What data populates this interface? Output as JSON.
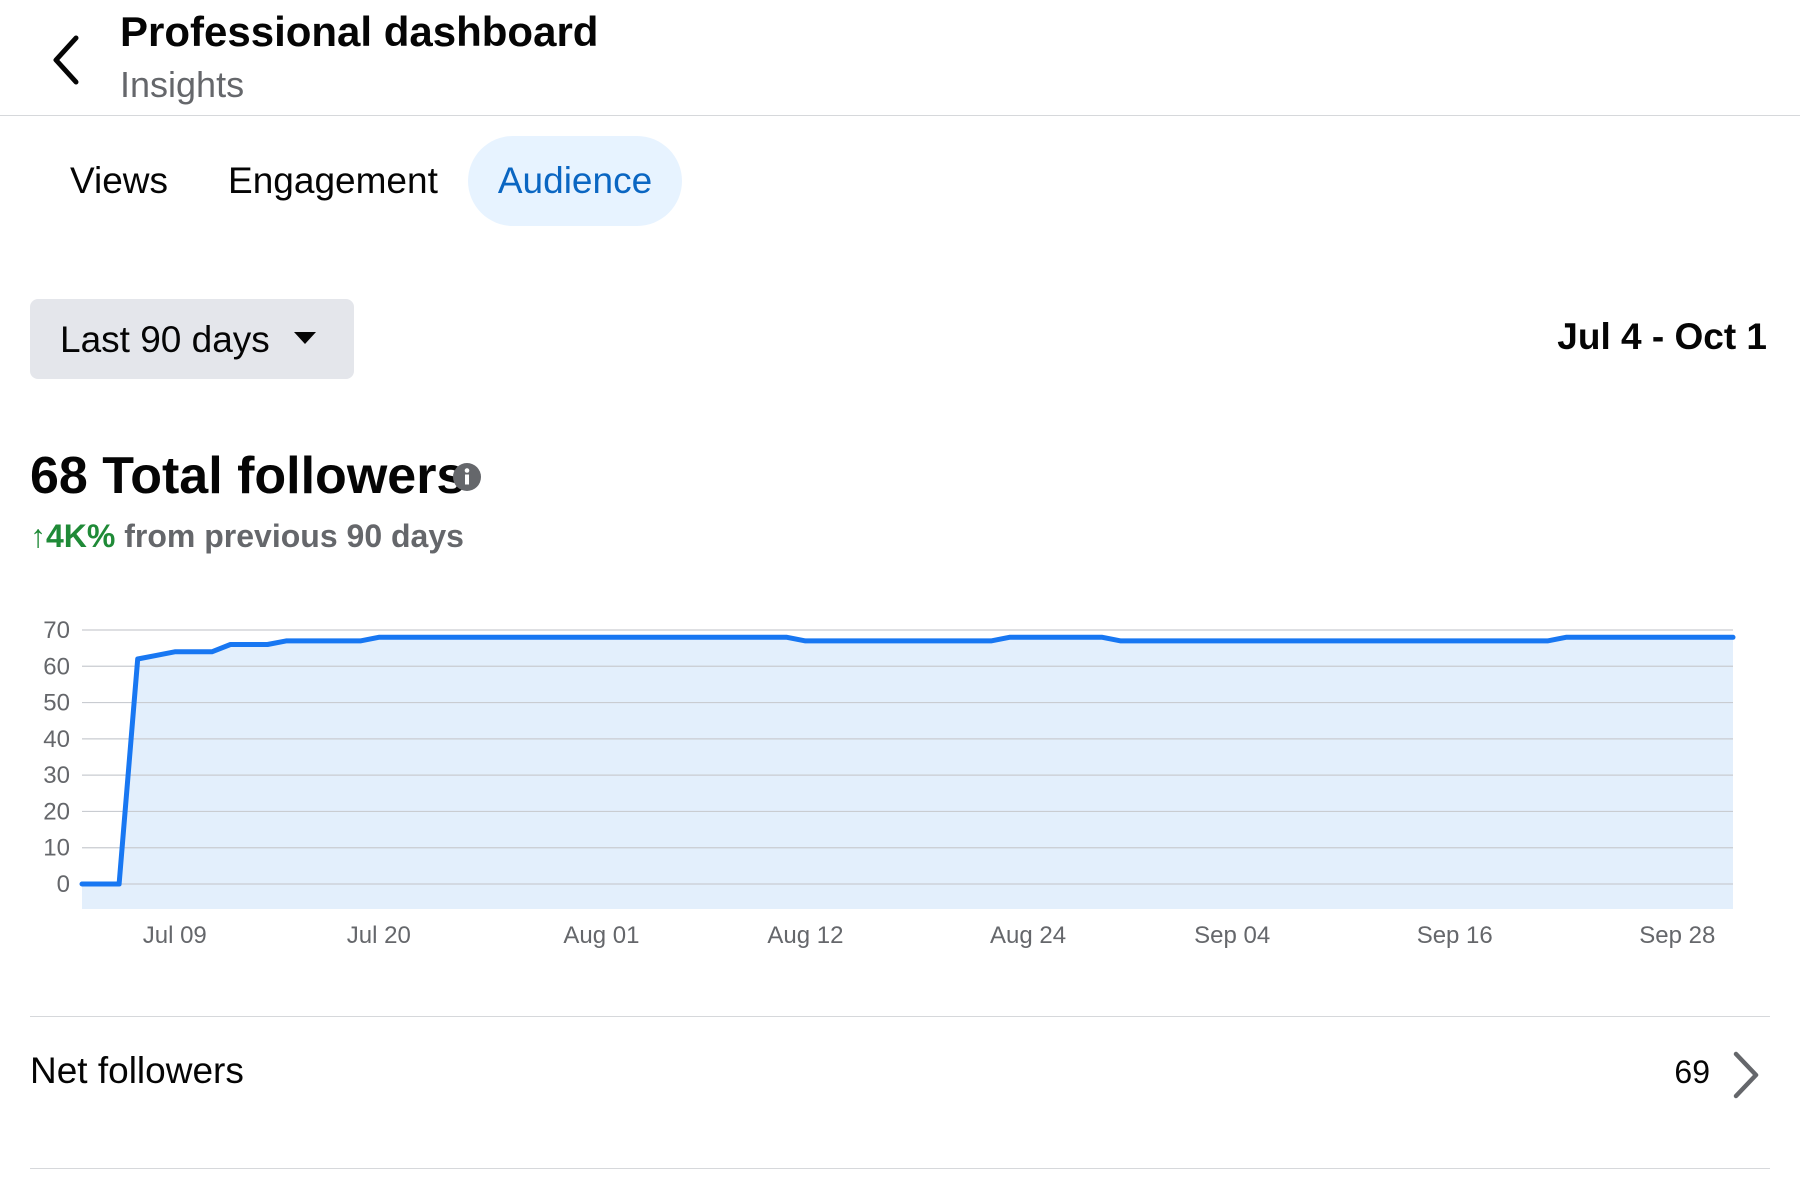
{
  "header": {
    "back_icon": "chevron-left-icon",
    "title": "Professional dashboard",
    "subtitle": "Insights"
  },
  "tabs": [
    {
      "label": "Views",
      "active": false
    },
    {
      "label": "Engagement",
      "active": false
    },
    {
      "label": "Audience",
      "active": true
    }
  ],
  "filter": {
    "range_label": "Last 90 days",
    "caret_icon": "caret-down-icon",
    "date_range": "Jul 4 - Oct 1"
  },
  "summary": {
    "total_label": "68 Total followers",
    "info_icon": "info-icon",
    "change_value": "↑4K%",
    "change_text": "from previous 90 days"
  },
  "colors": {
    "accent": "#0a66c2",
    "tab_active_bg": "#e7f3ff",
    "line": "#1877f2",
    "area": "#e3effc",
    "positive": "#1f8a37"
  },
  "chart_data": {
    "type": "area",
    "ylim": [
      0,
      70
    ],
    "yticks": [
      0,
      10,
      20,
      30,
      40,
      50,
      60,
      70
    ],
    "xlim": [
      "2024-07-04",
      "2024-10-01"
    ],
    "xtick_labels": [
      "Jul 09",
      "Jul 20",
      "Aug 01",
      "Aug 12",
      "Aug 24",
      "Sep 04",
      "Sep 16",
      "Sep 28"
    ],
    "xtick_dates": [
      "2024-07-09",
      "2024-07-20",
      "2024-08-01",
      "2024-08-12",
      "2024-08-24",
      "2024-09-04",
      "2024-09-16",
      "2024-09-28"
    ],
    "grid": true,
    "series": [
      {
        "x": [
          "2024-07-04",
          "2024-07-05",
          "2024-07-06",
          "2024-07-07",
          "2024-07-08",
          "2024-07-09",
          "2024-07-10",
          "2024-07-11",
          "2024-07-12",
          "2024-07-13",
          "2024-07-14",
          "2024-07-15",
          "2024-07-16",
          "2024-07-17",
          "2024-07-18",
          "2024-07-19",
          "2024-07-20",
          "2024-07-21",
          "2024-08-11",
          "2024-08-12",
          "2024-08-22",
          "2024-08-23",
          "2024-08-28",
          "2024-08-29",
          "2024-09-21",
          "2024-09-22",
          "2024-10-01"
        ],
        "values": [
          0,
          0,
          0,
          62,
          63,
          64,
          64,
          64,
          66,
          66,
          66,
          67,
          67,
          67,
          67,
          67,
          68,
          68,
          68,
          67,
          67,
          68,
          68,
          67,
          67,
          68,
          68
        ]
      }
    ]
  },
  "net_followers": {
    "label": "Net followers",
    "value": "69",
    "chevron_icon": "chevron-right-icon"
  }
}
